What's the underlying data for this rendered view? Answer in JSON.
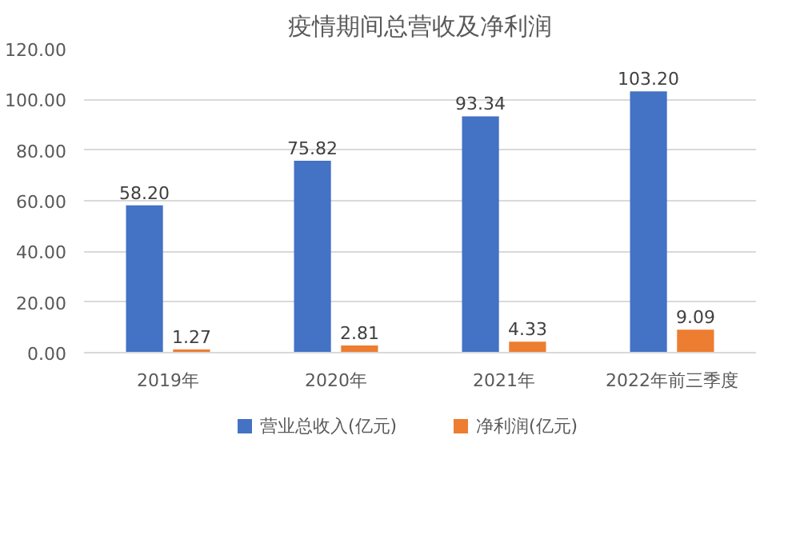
{
  "chart_data": {
    "type": "bar",
    "title": "疫情期间总营收及净利润",
    "categories": [
      "2019年",
      "2020年",
      "2021年",
      "2022年前三季度"
    ],
    "series": [
      {
        "name": "营业总收入(亿元)",
        "color": "#4472c4",
        "values": [
          58.2,
          75.82,
          93.34,
          103.2
        ],
        "value_labels": [
          "58.20",
          "75.82",
          "93.34",
          "103.20"
        ]
      },
      {
        "name": "净利润(亿元)",
        "color": "#ed7d31",
        "values": [
          1.27,
          2.81,
          4.33,
          9.09
        ],
        "value_labels": [
          "1.27",
          "2.81",
          "4.33",
          "9.09"
        ]
      }
    ],
    "ylim": [
      0,
      120
    ],
    "yticks": [
      {
        "value": 0,
        "label": "0.00"
      },
      {
        "value": 20,
        "label": "20.00"
      },
      {
        "value": 40,
        "label": "40.00"
      },
      {
        "value": 60,
        "label": "60.00"
      },
      {
        "value": 80,
        "label": "80.00"
      },
      {
        "value": 100,
        "label": "100.00"
      },
      {
        "value": 120,
        "label": "120.00"
      }
    ],
    "grid": "y",
    "legend": "bottom"
  }
}
